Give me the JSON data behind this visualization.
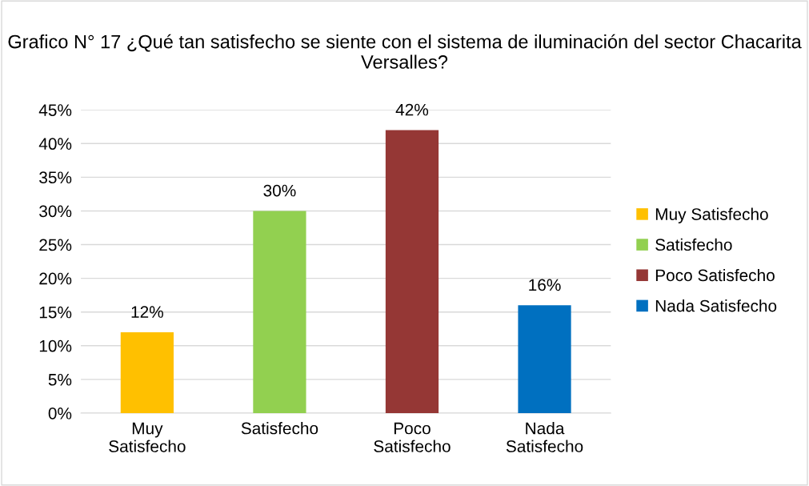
{
  "chart_data": {
    "type": "bar",
    "title": "Grafico N° 17 ¿Qué tan satisfecho se siente con el sistema de iluminación del sector Chacarita Versalles?",
    "categories": [
      "Muy Satisfecho",
      "Satisfecho",
      "Poco Satisfecho",
      "Nada Satisfecho"
    ],
    "series": [
      {
        "name": "Muy Satisfecho",
        "color": "#ffc000",
        "values": [
          12,
          null,
          null,
          null
        ],
        "value_labels": [
          "12%",
          null,
          null,
          null
        ]
      },
      {
        "name": "Satisfecho",
        "color": "#92d050",
        "values": [
          null,
          30,
          null,
          null
        ],
        "value_labels": [
          null,
          "30%",
          null,
          null
        ]
      },
      {
        "name": "Poco Satisfecho",
        "color": "#953735",
        "values": [
          null,
          null,
          42,
          null
        ],
        "value_labels": [
          null,
          null,
          "42%",
          null
        ]
      },
      {
        "name": "Nada Satisfecho",
        "color": "#0070c0",
        "values": [
          null,
          null,
          null,
          16
        ],
        "value_labels": [
          null,
          null,
          null,
          "16%"
        ]
      }
    ],
    "ylim": [
      0,
      45
    ],
    "yticks": [
      {
        "value": 0,
        "label": "0%"
      },
      {
        "value": 5,
        "label": "5%"
      },
      {
        "value": 10,
        "label": "10%"
      },
      {
        "value": 15,
        "label": "15%"
      },
      {
        "value": 20,
        "label": "20%"
      },
      {
        "value": 25,
        "label": "25%"
      },
      {
        "value": 30,
        "label": "30%"
      },
      {
        "value": 35,
        "label": "35%"
      },
      {
        "value": 40,
        "label": "40%"
      },
      {
        "value": 45,
        "label": "45%"
      }
    ],
    "grid": "y",
    "legend": "right"
  }
}
